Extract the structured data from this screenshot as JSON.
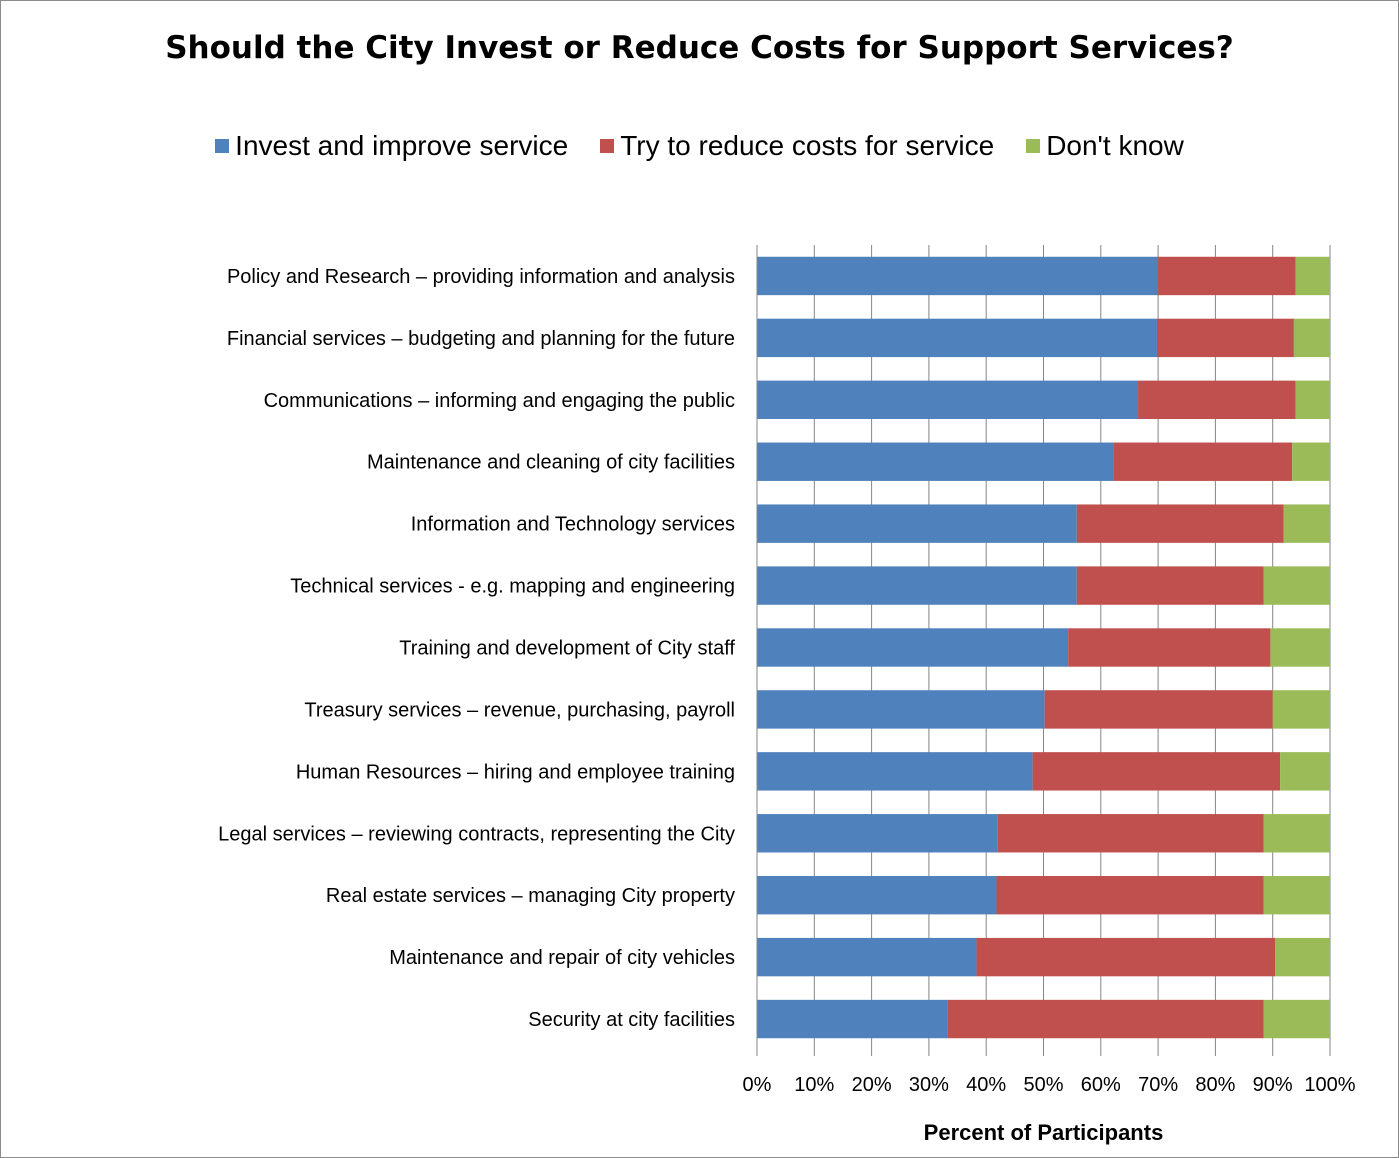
{
  "chart_data": {
    "type": "bar",
    "orientation": "horizontal",
    "stacked": "percent",
    "title": "Should the City Invest or Reduce Costs for Support Services?",
    "xlabel": "Percent of Participants",
    "xlim": [
      0,
      100
    ],
    "xticks": [
      "0%",
      "10%",
      "20%",
      "30%",
      "40%",
      "50%",
      "60%",
      "70%",
      "80%",
      "90%",
      "100%"
    ],
    "grid": "vertical",
    "legend": "top",
    "categories": [
      "Policy and Research – providing information and analysis",
      "Financial services – budgeting and planning for the future",
      "Communications – informing and engaging the public",
      "Maintenance and cleaning of city facilities",
      "Information and Technology services",
      "Technical services - e.g. mapping and engineering",
      "Training and development of City staff",
      "Treasury services – revenue, purchasing, payroll",
      "Human Resources – hiring and employee training",
      "Legal services – reviewing contracts, representing the City",
      "Real estate services – managing City property",
      "Maintenance and repair of city vehicles",
      "Security at city facilities"
    ],
    "series": [
      {
        "name": "Invest and improve service",
        "color": "#4f81bd",
        "values": [
          70,
          69.8,
          66.5,
          62.2,
          55.8,
          55.8,
          54.3,
          50.2,
          48.1,
          42,
          41.8,
          38.3,
          33.2
        ]
      },
      {
        "name": "Try to reduce costs for service",
        "color": "#c0504d",
        "values": [
          24,
          23.9,
          27.5,
          31.2,
          36.1,
          32.6,
          35.3,
          39.8,
          43.2,
          46.4,
          46.6,
          52.1,
          55.2
        ]
      },
      {
        "name": "Don't know",
        "color": "#9bbb59",
        "values": [
          6,
          6.3,
          6,
          6.6,
          8.1,
          11.6,
          10.4,
          10,
          8.7,
          11.6,
          11.6,
          9.6,
          11.6
        ]
      }
    ]
  }
}
